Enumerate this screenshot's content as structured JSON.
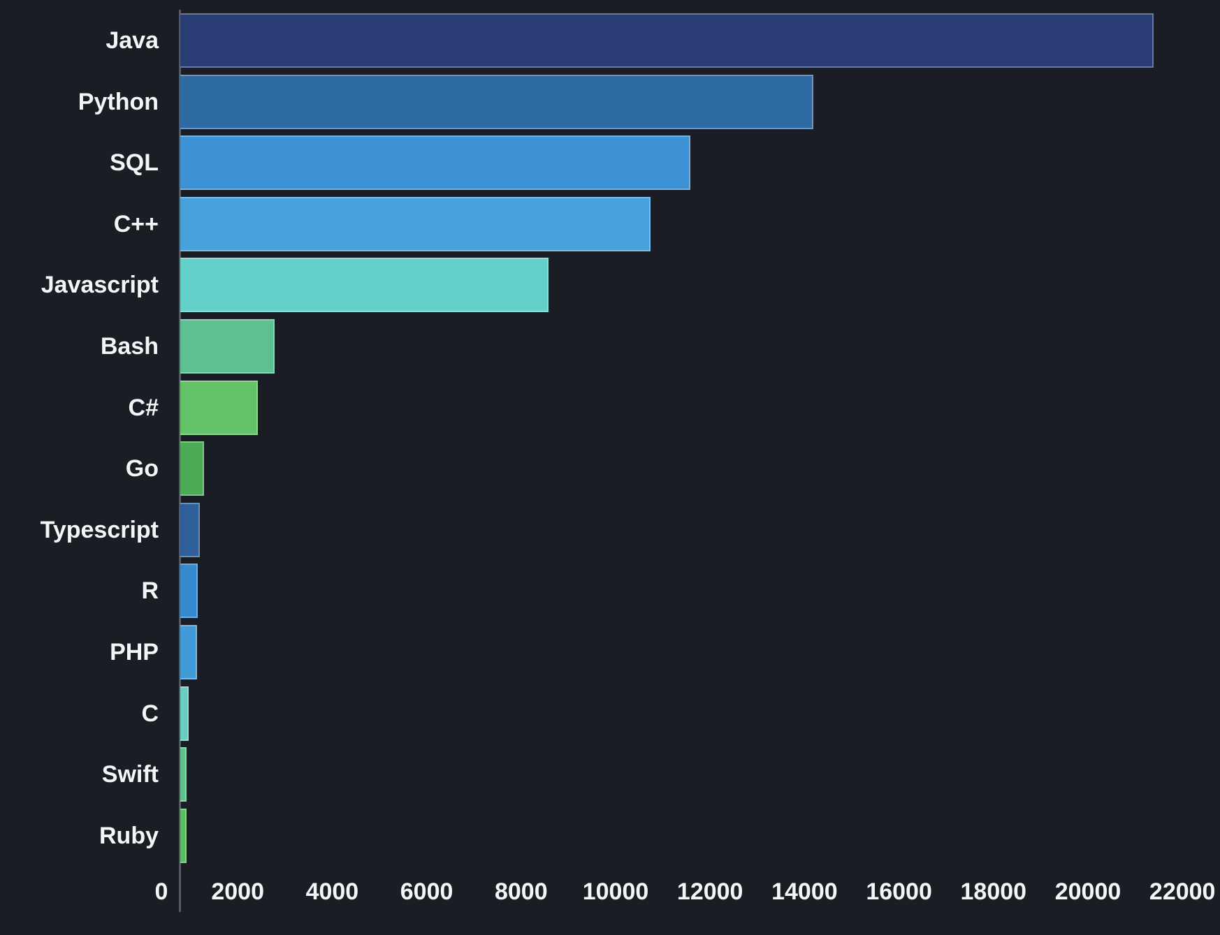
{
  "chart_data": {
    "type": "bar",
    "orientation": "horizontal",
    "title": "",
    "xlabel": "",
    "ylabel": "",
    "grid": false,
    "legend": "none",
    "categories": [
      "Java",
      "Python",
      "SQL",
      "C++",
      "Javascript",
      "Bash",
      "C#",
      "Go",
      "Typescript",
      "R",
      "PHP",
      "C",
      "Swift",
      "Ruby"
    ],
    "values": [
      20600,
      13400,
      10800,
      9950,
      7800,
      2000,
      1640,
      510,
      420,
      370,
      355,
      180,
      130,
      140
    ],
    "bar_colors": [
      "#2a3e75",
      "#2e6aa3",
      "#3d92d6",
      "#47a1da",
      "#63cfc9",
      "#5dbf92",
      "#63c168",
      "#4cab57",
      "#2e5f98",
      "#3589cd",
      "#419bd8",
      "#67cfc2",
      "#61c18f",
      "#5cbd62"
    ],
    "x_ticks": [
      0,
      2000,
      4000,
      6000,
      8000,
      10000,
      12000,
      14000,
      16000,
      18000,
      20000,
      22000
    ],
    "xlim": [
      0,
      22000
    ],
    "colors": {
      "background": "#1b1d24",
      "text": "#f4f5f7",
      "axis_line": "#565b63",
      "bar_border": "rgba(255,255,255,0.30)"
    }
  }
}
